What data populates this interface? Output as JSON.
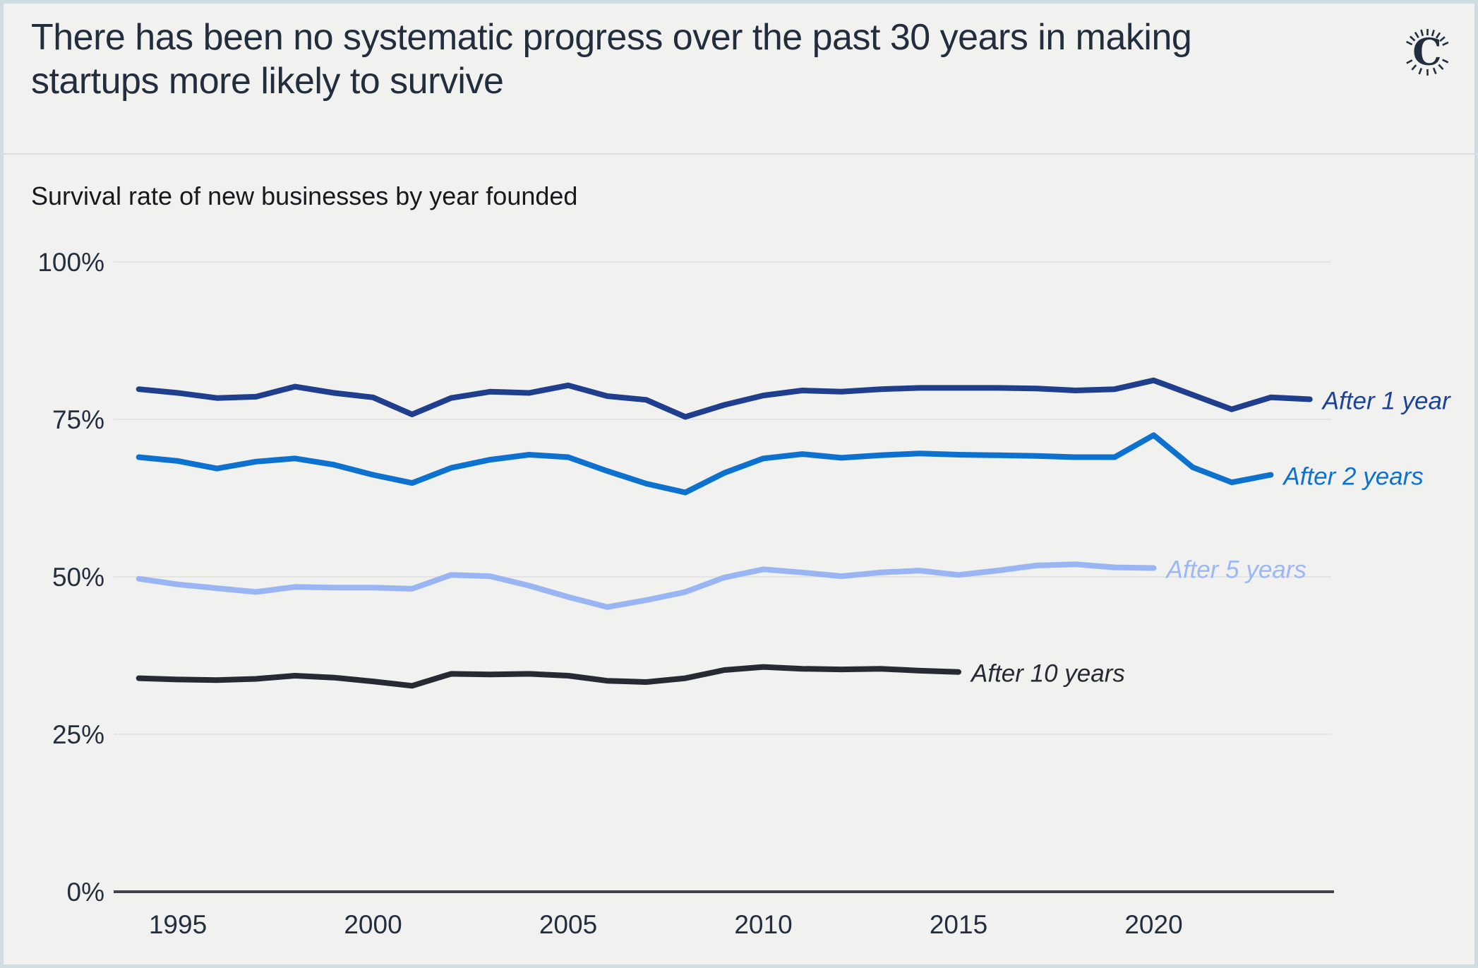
{
  "header": {
    "title": "There has been no systematic progress over the past 30 years in making startups more likely to survive",
    "logo_glyph": "C"
  },
  "subtitle": "Survival rate of new businesses by year founded",
  "colors": {
    "background": "#f1f1f0",
    "frame_border": "#cfdce0",
    "header_divider": "#d9dde1",
    "gridline": "#e4e4e2",
    "axis_line": "#404448",
    "text": "#232e3f",
    "accent_navy": "#203e8e",
    "accent_blue": "#0d72cf",
    "accent_light_blue": "#9ab5f3",
    "accent_dark": "#262a32"
  },
  "chart_data": {
    "type": "line",
    "title": "Survival rate of new businesses by year founded",
    "xlabel": "",
    "ylabel": "",
    "xlim": [
      1994,
      2024
    ],
    "ylim": [
      0,
      100
    ],
    "grid": true,
    "legend_position": "line-end-labels",
    "x_ticks": [
      {
        "value": 1995,
        "label": "1995"
      },
      {
        "value": 2000,
        "label": "2000"
      },
      {
        "value": 2005,
        "label": "2005"
      },
      {
        "value": 2010,
        "label": "2010"
      },
      {
        "value": 2015,
        "label": "2015"
      },
      {
        "value": 2020,
        "label": "2020"
      }
    ],
    "y_ticks": [
      {
        "value": 0,
        "label": "0%"
      },
      {
        "value": 25,
        "label": "25%"
      },
      {
        "value": 50,
        "label": "50%"
      },
      {
        "value": 75,
        "label": "75%"
      },
      {
        "value": 100,
        "label": "100%"
      }
    ],
    "series": [
      {
        "name": "After 1 year",
        "color": "#203e8e",
        "label_color": "#1c429c",
        "start_year": 1994,
        "end_year": 2024,
        "values": [
          79.8,
          79.2,
          78.4,
          78.6,
          80.2,
          79.2,
          78.5,
          75.8,
          78.4,
          79.4,
          79.2,
          80.4,
          78.7,
          78.1,
          75.4,
          77.3,
          78.8,
          79.6,
          79.4,
          79.8,
          80.0,
          80.0,
          80.0,
          79.9,
          79.6,
          79.8,
          81.2,
          78.9,
          76.6,
          78.5,
          78.2
        ]
      },
      {
        "name": "After 2 years",
        "color": "#0d72cf",
        "label_color": "#0d72cf",
        "start_year": 1994,
        "end_year": 2023,
        "values": [
          69.0,
          68.4,
          67.2,
          68.3,
          68.8,
          67.8,
          66.2,
          64.9,
          67.3,
          68.6,
          69.4,
          69.0,
          66.8,
          64.8,
          63.4,
          66.5,
          68.8,
          69.5,
          68.9,
          69.3,
          69.6,
          69.4,
          69.3,
          69.2,
          69.0,
          69.0,
          72.5,
          67.4,
          65.0,
          66.2
        ]
      },
      {
        "name": "After 5 years",
        "color": "#9ab5f3",
        "label_color": "#9cb8f4",
        "start_year": 1994,
        "end_year": 2020,
        "values": [
          49.7,
          48.8,
          48.2,
          47.6,
          48.4,
          48.3,
          48.3,
          48.1,
          50.3,
          50.1,
          48.6,
          46.8,
          45.2,
          46.3,
          47.6,
          49.9,
          51.2,
          50.7,
          50.1,
          50.7,
          51.0,
          50.3,
          51.0,
          51.8,
          52.0,
          51.5,
          51.4
        ]
      },
      {
        "name": "After 10 years",
        "color": "#262a32",
        "label_color": "#262b33",
        "start_year": 1994,
        "end_year": 2015,
        "values": [
          33.9,
          33.7,
          33.6,
          33.8,
          34.3,
          34.0,
          33.4,
          32.7,
          34.6,
          34.5,
          34.6,
          34.3,
          33.5,
          33.3,
          33.9,
          35.2,
          35.7,
          35.4,
          35.3,
          35.4,
          35.1,
          34.9
        ]
      }
    ]
  }
}
